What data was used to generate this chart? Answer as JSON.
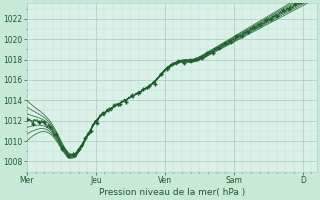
{
  "title": "Pression niveau de la mer( hPa )",
  "background_color": "#c8e8d8",
  "plot_bg_color": "#daf0e8",
  "grid_major_color": "#b0d4c4",
  "grid_minor_color": "#c4e4d4",
  "line_color": "#1a5c2a",
  "ylim": [
    1007.0,
    1023.5
  ],
  "yticks": [
    1008,
    1010,
    1012,
    1014,
    1016,
    1018,
    1020,
    1022
  ],
  "xtick_labels": [
    "Mer",
    "Jeu",
    "Ven",
    "Sam",
    "D"
  ],
  "xtick_positions": [
    0,
    1,
    2,
    3,
    4
  ],
  "xlim": [
    0,
    4.2
  ],
  "num_series": 7
}
